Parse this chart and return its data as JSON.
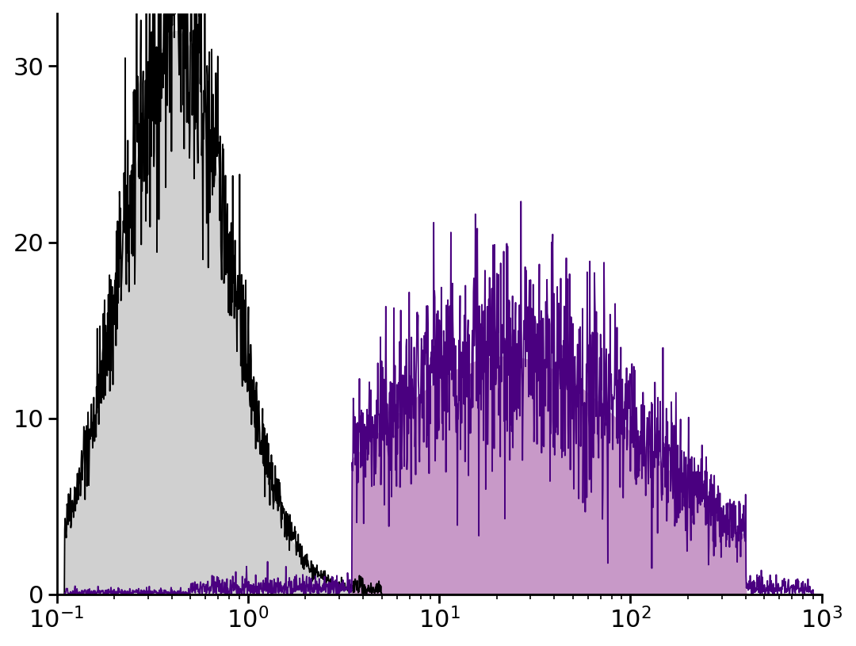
{
  "title": "",
  "xlim": [
    0.1,
    1000
  ],
  "ylim": [
    0,
    33
  ],
  "yticks": [
    0,
    10,
    20,
    30
  ],
  "xlabel": "",
  "ylabel": "",
  "background_color": "#ffffff",
  "control_color_fill": "#d0d0d0",
  "control_color_line": "#000000",
  "sample_color_fill": "#c899c8",
  "sample_color_line": "#4a0080",
  "control_peak_x": 0.42,
  "control_peak_y": 32.0,
  "control_sigma": 0.28,
  "sample_peak_x": 22.0,
  "sample_peak_y": 13.5,
  "sample_sigma": 0.75,
  "noise_seed_control": 42,
  "noise_seed_sample": 7,
  "n_points": 2000,
  "line_width": 1.3,
  "tick_fontsize": 22
}
